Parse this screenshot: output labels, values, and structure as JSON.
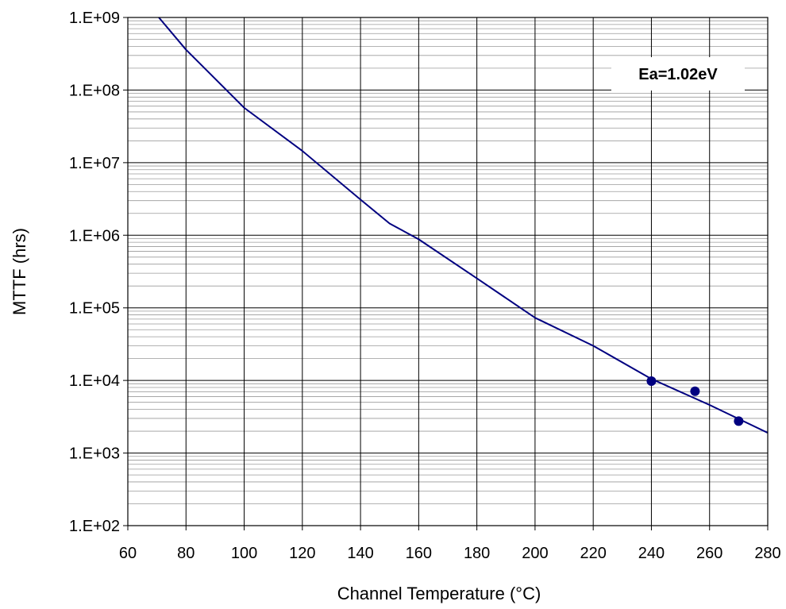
{
  "chart_data": {
    "type": "line",
    "title": "",
    "xlabel": "Channel Temperature (°C)",
    "ylabel": "MTTF (hrs)",
    "xlim": [
      60,
      280
    ],
    "ylim": [
      100,
      1000000000
    ],
    "y_scale": "log",
    "grid": true,
    "x_ticks": [
      "60",
      "80",
      "100",
      "120",
      "140",
      "160",
      "180",
      "200",
      "220",
      "240",
      "260",
      "280"
    ],
    "y_ticks": [
      "1.E+02",
      "1.E+03",
      "1.E+04",
      "1.E+05",
      "1.E+06",
      "1.E+07",
      "1.E+08",
      "1.E+09"
    ],
    "series": [
      {
        "style": "line",
        "color": "#000080",
        "x": [
          69,
          80,
          100,
          120,
          140,
          150,
          160,
          180,
          200,
          220,
          240,
          260,
          280
        ],
        "y": [
          1200000000,
          360000000,
          57000000,
          14500000,
          3100000,
          1450000,
          880000,
          255000,
          73000,
          30000,
          10500,
          4600,
          1900
        ]
      },
      {
        "style": "markers",
        "color": "#000080",
        "x": [
          240,
          255,
          270
        ],
        "y": [
          9800,
          7100,
          2750
        ]
      }
    ],
    "annotations": [
      {
        "text": "Ea=1.02eV",
        "position": "top-right"
      }
    ]
  }
}
